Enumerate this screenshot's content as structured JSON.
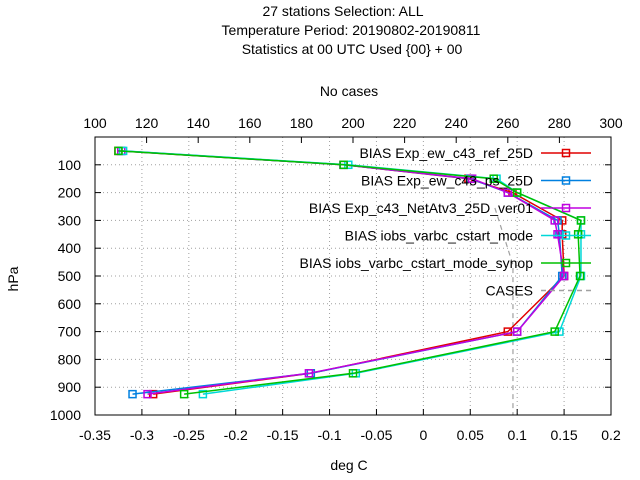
{
  "chart_data": {
    "type": "line",
    "title_lines": [
      "27 stations Selection: ALL",
      "Temperature  Period: 20190802-20190811",
      "Statistics at 00 UTC  Used {00} + 00"
    ],
    "xlabel": "deg C",
    "ylabel": "hPa",
    "x2label": "No cases",
    "xlim": [
      -0.35,
      0.2
    ],
    "ylim": [
      1000,
      0
    ],
    "x2lim": [
      100,
      300
    ],
    "x_ticks": [
      "-0.35",
      "-0.3",
      "-0.25",
      "-0.2",
      "-0.15",
      "-0.1",
      "-0.05",
      "0",
      "0.05",
      "0.1",
      "0.15",
      "0.2"
    ],
    "y_ticks": [
      "100",
      "200",
      "300",
      "400",
      "500",
      "600",
      "700",
      "800",
      "900",
      "1000"
    ],
    "x2_ticks": [
      "100",
      "120",
      "140",
      "160",
      "180",
      "200",
      "220",
      "240",
      "260",
      "280",
      "300"
    ],
    "grid": true,
    "legend_position": "top-right",
    "series": [
      {
        "name": "BIAS Exp_ew_c43_ref_25D",
        "color": "#e00000",
        "marker": "square",
        "points": [
          [
            -0.325,
            50
          ],
          [
            -0.085,
            100
          ],
          [
            0.048,
            150
          ],
          [
            0.095,
            200
          ],
          [
            0.148,
            300
          ],
          [
            0.148,
            350
          ],
          [
            0.15,
            500
          ],
          [
            0.09,
            700
          ],
          [
            -0.12,
            850
          ],
          [
            -0.288,
            925
          ]
        ]
      },
      {
        "name": "BIAS Exp_ew_c43_ps_25D",
        "color": "#0080e0",
        "marker": "square",
        "points": [
          [
            -0.322,
            50
          ],
          [
            -0.085,
            100
          ],
          [
            0.05,
            150
          ],
          [
            0.09,
            200
          ],
          [
            0.143,
            300
          ],
          [
            0.145,
            350
          ],
          [
            0.148,
            500
          ],
          [
            0.1,
            700
          ],
          [
            -0.12,
            850
          ],
          [
            -0.31,
            925
          ]
        ]
      },
      {
        "name": "BIAS Exp_c43_NetAtv3_25D_ver01",
        "color": "#c000e0",
        "marker": "square",
        "points": [
          [
            -0.322,
            50
          ],
          [
            -0.085,
            100
          ],
          [
            0.052,
            150
          ],
          [
            0.09,
            200
          ],
          [
            0.14,
            300
          ],
          [
            0.143,
            350
          ],
          [
            0.15,
            500
          ],
          [
            0.1,
            700
          ],
          [
            -0.122,
            850
          ],
          [
            -0.294,
            925
          ]
        ]
      },
      {
        "name": "BIAS iobs_varbc_cstart_mode",
        "color": "#00d8d8",
        "marker": "square",
        "points": [
          [
            -0.32,
            50
          ],
          [
            -0.08,
            100
          ],
          [
            0.078,
            150
          ],
          [
            0.1,
            200
          ],
          [
            0.168,
            300
          ],
          [
            0.168,
            350
          ],
          [
            0.168,
            500
          ],
          [
            0.145,
            700
          ],
          [
            -0.072,
            850
          ],
          [
            -0.235,
            925
          ]
        ]
      },
      {
        "name": "BIAS iobs_varbc_cstart_mode_synop",
        "color": "#00c000",
        "marker": "square",
        "points": [
          [
            -0.325,
            50
          ],
          [
            -0.085,
            100
          ],
          [
            0.075,
            150
          ],
          [
            0.1,
            200
          ],
          [
            0.168,
            300
          ],
          [
            0.165,
            350
          ],
          [
            0.167,
            500
          ],
          [
            0.14,
            700
          ],
          [
            -0.075,
            850
          ],
          [
            -0.255,
            925
          ]
        ]
      }
    ],
    "cases": {
      "name": "CASES",
      "color": "#a0a0a0",
      "points": [
        [
          255,
          255
        ],
        [
          262,
          460
        ],
        [
          262,
          1000
        ]
      ]
    }
  }
}
